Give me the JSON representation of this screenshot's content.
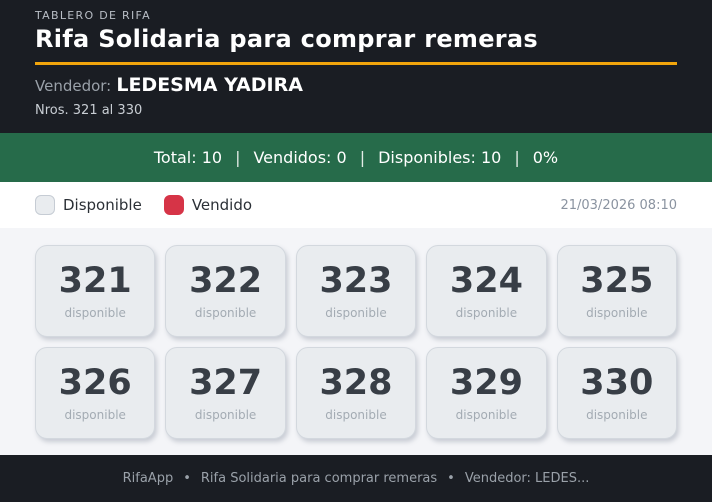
{
  "header": {
    "kicker": "TABLERO DE RIFA",
    "title": "Rifa Solidaria para comprar remeras",
    "vendor_label": "Vendedor:",
    "vendor_name": "LEDESMA YADIRA",
    "range": "Nros. 321 al 330"
  },
  "stats_bar": {
    "segments": [
      "Total: 10",
      "Vendidos: 0",
      "Disponibles: 10",
      "0%"
    ],
    "separator": "|"
  },
  "legend": {
    "available_label": "Disponible",
    "sold_label": "Vendido",
    "timestamp": "21/03/2026 08:10"
  },
  "tickets": [
    {
      "number": "321",
      "status": "disponible"
    },
    {
      "number": "322",
      "status": "disponible"
    },
    {
      "number": "323",
      "status": "disponible"
    },
    {
      "number": "324",
      "status": "disponible"
    },
    {
      "number": "325",
      "status": "disponible"
    },
    {
      "number": "326",
      "status": "disponible"
    },
    {
      "number": "327",
      "status": "disponible"
    },
    {
      "number": "328",
      "status": "disponible"
    },
    {
      "number": "329",
      "status": "disponible"
    },
    {
      "number": "330",
      "status": "disponible"
    }
  ],
  "footer": {
    "segments": [
      "RifaApp",
      "Rifa Solidaria para comprar remeras",
      "Vendedor: LEDES..."
    ],
    "separator": "•"
  },
  "colors": {
    "header_bg": "#1a1d23",
    "accent_rule": "#f2a50c",
    "stats_bg": "#266b4a",
    "available_swatch": "#e9ecef",
    "sold_swatch": "#d63447",
    "ticket_bg": "#e9ecef",
    "ticket_number": "#383e46"
  }
}
